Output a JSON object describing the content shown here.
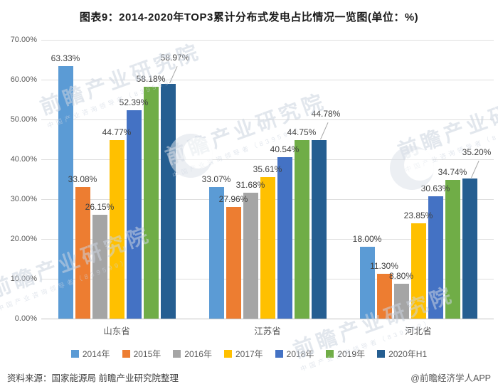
{
  "title": "图表9：2014-2020年TOP3累计分布式发电占比情况一览图(单位：%)",
  "chart_data": {
    "type": "bar",
    "title": "图表9：2014-2020年TOP3累计分布式发电占比情况一览图(单位：%)",
    "categories": [
      "山东省",
      "江苏省",
      "河北省"
    ],
    "series": [
      {
        "name": "2014年",
        "color": "#5B9BD5",
        "values": [
          63.33,
          33.07,
          18.0
        ]
      },
      {
        "name": "2015年",
        "color": "#ED7D31",
        "values": [
          33.08,
          27.96,
          11.3
        ]
      },
      {
        "name": "2016年",
        "color": "#A5A5A5",
        "values": [
          26.15,
          31.68,
          8.8
        ]
      },
      {
        "name": "2017年",
        "color": "#FFC000",
        "values": [
          44.77,
          35.61,
          23.85
        ]
      },
      {
        "name": "2018年",
        "color": "#4472C4",
        "values": [
          52.39,
          40.54,
          30.63
        ]
      },
      {
        "name": "2019年",
        "color": "#70AD47",
        "values": [
          58.18,
          44.75,
          34.74
        ]
      },
      {
        "name": "2020年H1",
        "color": "#255E91",
        "values": [
          58.97,
          44.78,
          35.2
        ]
      }
    ],
    "ylim": [
      0,
      70
    ],
    "yticks": [
      "70.00%",
      "60.00%",
      "50.00%",
      "40.00%",
      "30.00%",
      "20.00%",
      "10.00%",
      "0.00%"
    ],
    "value_suffix": "%",
    "value_decimals": 2,
    "grid": true,
    "legend_position": "bottom"
  },
  "footer": {
    "source": "资料来源：国家能源局 前瞻产业研究院整理",
    "credit": "@前瞻经济学人APP"
  },
  "watermark": {
    "text": "前瞻产业研究院",
    "subtext": "中国产业咨询领导者（839599）"
  }
}
